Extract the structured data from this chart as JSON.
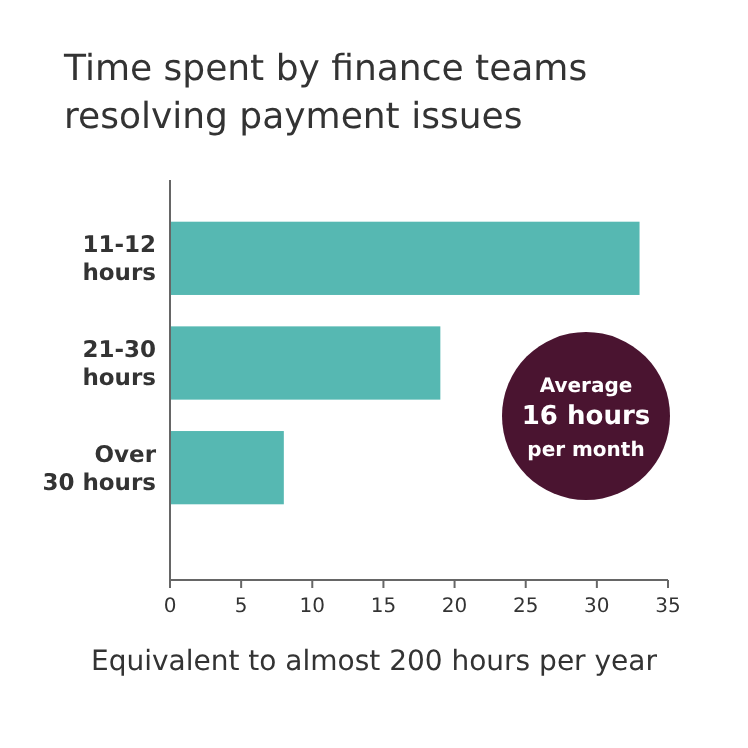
{
  "chart_data": {
    "type": "bar",
    "orientation": "horizontal",
    "title": "Time spent by finance teams\nresolving payment issues",
    "categories": [
      "11-12 hours",
      "21-30 hours",
      "Over 30 hours"
    ],
    "values": [
      33,
      19,
      8
    ],
    "color": "#56b8b2",
    "xlim": [
      0,
      35
    ],
    "xticks": [
      0,
      5,
      10,
      15,
      20,
      25,
      30,
      35
    ],
    "grid": false,
    "annotations": [
      "Average\n16 hours\nper month",
      "Equivalent to almost 200 hours per year"
    ]
  }
}
